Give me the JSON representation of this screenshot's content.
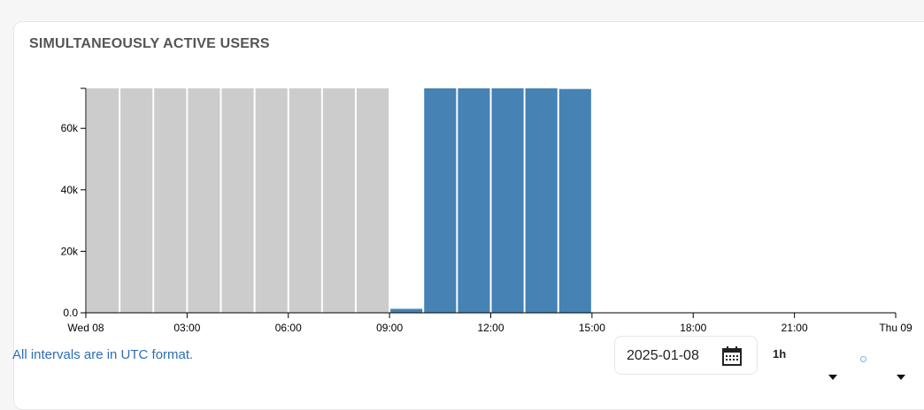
{
  "card": {
    "title": "SIMULTANEOUSLY ACTIVE USERS",
    "footnote": "All intervals are in UTC format."
  },
  "controls": {
    "date_value": "2025-01-08",
    "interval_value": "1h",
    "icons": [
      "calendar-icon",
      "chevron-down-icon",
      "dot-icon"
    ]
  },
  "colors": {
    "past": "#cccccc",
    "current": "#4682b4",
    "link": "#2e6db4"
  },
  "chart_data": {
    "type": "bar",
    "x_ticks": [
      "Wed 08",
      "03:00",
      "06:00",
      "09:00",
      "12:00",
      "15:00",
      "18:00",
      "21:00",
      "Thu 09"
    ],
    "y_ticks": [
      "0.0",
      "20k",
      "40k",
      "60k"
    ],
    "ylim": [
      0,
      73000
    ],
    "bars": [
      {
        "hour": 0,
        "value": 73000,
        "group": "past"
      },
      {
        "hour": 1,
        "value": 73000,
        "group": "past"
      },
      {
        "hour": 2,
        "value": 73000,
        "group": "past"
      },
      {
        "hour": 3,
        "value": 73000,
        "group": "past"
      },
      {
        "hour": 4,
        "value": 73000,
        "group": "past"
      },
      {
        "hour": 5,
        "value": 73000,
        "group": "past"
      },
      {
        "hour": 6,
        "value": 73000,
        "group": "past"
      },
      {
        "hour": 7,
        "value": 73000,
        "group": "past"
      },
      {
        "hour": 8,
        "value": 73000,
        "group": "past"
      },
      {
        "hour": 9,
        "value": 1300,
        "group": "current"
      },
      {
        "hour": 10,
        "value": 73000,
        "group": "current"
      },
      {
        "hour": 11,
        "value": 73000,
        "group": "current"
      },
      {
        "hour": 12,
        "value": 73000,
        "group": "current"
      },
      {
        "hour": 13,
        "value": 73000,
        "group": "current"
      },
      {
        "hour": 14,
        "value": 72800,
        "group": "current"
      }
    ],
    "x_range_hours": [
      0,
      24
    ]
  }
}
